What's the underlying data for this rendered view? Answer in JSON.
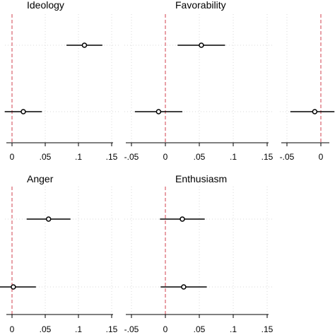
{
  "chart_data": [
    {
      "type": "scatter",
      "title": "Ideology",
      "x_ticks": [
        "0",
        ".05",
        ".1",
        ".15"
      ],
      "x_tick_values": [
        0,
        0.05,
        0.1,
        0.15
      ],
      "xlim": [
        -0.005,
        0.16
      ],
      "reference_line": 0,
      "points": [
        {
          "est": 0.109,
          "lo": 0.082,
          "hi": 0.136
        },
        {
          "est": 0.017,
          "lo": -0.011,
          "hi": 0.045
        }
      ]
    },
    {
      "type": "scatter",
      "title": "Favorability",
      "x_ticks": [
        "-.05",
        "0",
        ".05",
        ".1",
        ".15"
      ],
      "x_tick_values": [
        -0.05,
        0,
        0.05,
        0.1,
        0.15
      ],
      "xlim": [
        -0.06,
        0.16
      ],
      "reference_line": 0,
      "points": [
        {
          "est": 0.053,
          "lo": 0.018,
          "hi": 0.088
        },
        {
          "est": -0.01,
          "lo": -0.045,
          "hi": 0.025
        }
      ]
    },
    {
      "type": "scatter",
      "title": "",
      "x_ticks": [
        "-.05",
        "0"
      ],
      "x_tick_values": [
        -0.05,
        0
      ],
      "xlim": [
        -0.06,
        0.16
      ],
      "reference_line": 0,
      "points": [
        {
          "est": -0.009,
          "lo": -0.045,
          "hi": 0.02
        }
      ]
    },
    {
      "type": "scatter",
      "title": "Anger",
      "x_ticks": [
        "0",
        ".05",
        ".1",
        ".15"
      ],
      "x_tick_values": [
        0,
        0.05,
        0.1,
        0.15
      ],
      "xlim": [
        -0.005,
        0.16
      ],
      "reference_line": 0,
      "points": [
        {
          "est": 0.055,
          "lo": 0.022,
          "hi": 0.088
        },
        {
          "est": 0.002,
          "lo": -0.035,
          "hi": 0.036
        }
      ]
    },
    {
      "type": "scatter",
      "title": "Enthusiasm",
      "x_ticks": [
        "-.05",
        "0",
        ".05",
        ".1",
        ".15"
      ],
      "x_tick_values": [
        -0.05,
        0,
        0.05,
        0.1,
        0.15
      ],
      "xlim": [
        -0.06,
        0.16
      ],
      "reference_line": 0,
      "points": [
        {
          "est": 0.025,
          "lo": -0.008,
          "hi": 0.058
        },
        {
          "est": 0.027,
          "lo": -0.007,
          "hi": 0.061
        }
      ]
    }
  ]
}
